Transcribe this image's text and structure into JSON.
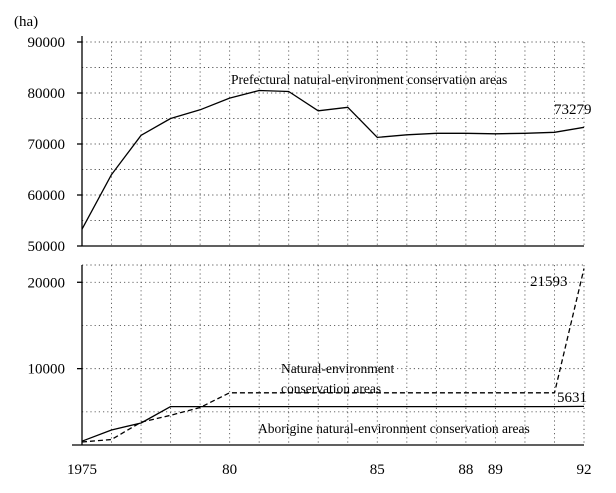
{
  "chart_data": {
    "type": "line",
    "unit_label": "(ha)",
    "x_tick_labels": [
      "1975",
      "80",
      "85",
      "88",
      "89",
      "92"
    ],
    "x_tick_values": [
      1975,
      1980,
      1985,
      1988,
      1989,
      1992
    ],
    "xlim": [
      1975,
      1992
    ],
    "grid": true,
    "panels": [
      {
        "id": "upper",
        "ylim": [
          50000,
          90000
        ],
        "y_tick_labels": [
          "50000",
          "60000",
          "70000",
          "80000",
          "90000"
        ],
        "y_tick_values": [
          50000,
          60000,
          70000,
          80000,
          90000
        ],
        "series": [
          {
            "name": "Prefectural natural-environment conservation areas",
            "style": "solid",
            "end_label": "73279",
            "x": [
              1975,
              1976,
              1977,
              1978,
              1979,
              1980,
              1981,
              1982,
              1983,
              1984,
              1985,
              1986,
              1987,
              1988,
              1989,
              1990,
              1991,
              1992
            ],
            "y": [
              53300,
              64000,
              71700,
              75000,
              76700,
              79000,
              80500,
              80300,
              76500,
              77200,
              71300,
              71800,
              72100,
              72100,
              72000,
              72100,
              72300,
              73279
            ]
          }
        ]
      },
      {
        "id": "lower",
        "ylim": [
          0,
          22000
        ],
        "y_tick_labels": [
          "10000",
          "20000"
        ],
        "y_tick_values": [
          10000,
          20000
        ],
        "series": [
          {
            "name": "Natural-environment conservation areas",
            "style": "dashed",
            "end_label": "21593",
            "x": [
              1975,
              1976,
              1977,
              1978,
              1979,
              1980,
              1981,
              1982,
              1983,
              1984,
              1985,
              1986,
              1987,
              1988,
              1989,
              1990,
              1991,
              1992
            ],
            "y": [
              1500,
              1800,
              3800,
              4600,
              5500,
              7200,
              7200,
              7200,
              7200,
              7200,
              7200,
              7200,
              7200,
              7200,
              7200,
              7200,
              7200,
              21593
            ]
          },
          {
            "name": "Aborigine natural-environment conservation areas",
            "style": "solid",
            "end_label": "5631",
            "x": [
              1975,
              1976,
              1977,
              1978,
              1979,
              1980,
              1981,
              1982,
              1983,
              1984,
              1985,
              1986,
              1987,
              1988,
              1989,
              1990,
              1991,
              1992
            ],
            "y": [
              1600,
              2900,
              3700,
              5600,
              5600,
              5600,
              5600,
              5600,
              5600,
              5600,
              5600,
              5600,
              5600,
              5600,
              5600,
              5600,
              5600,
              5631
            ]
          }
        ]
      }
    ]
  }
}
